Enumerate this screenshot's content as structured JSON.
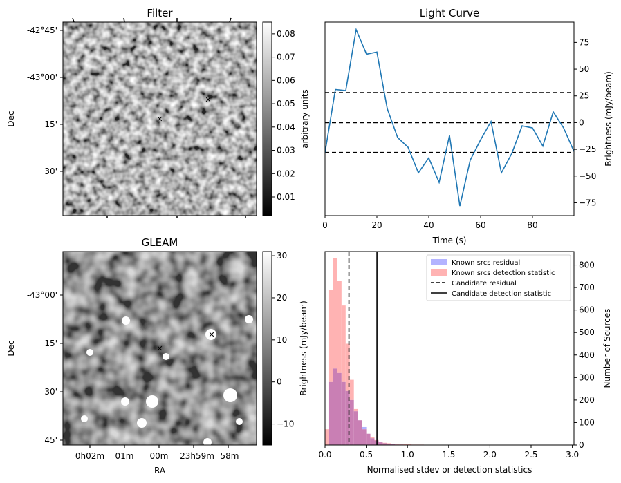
{
  "colors": {
    "line": "#1f77b4",
    "known_residual": "#b3b3ff",
    "known_detection": "#ffb3b3",
    "overlap": "#c97fb4",
    "marker_red": "#e41a1c",
    "marker_blue": "#1a1acc"
  },
  "chart_data": [
    {
      "type": "heatmap",
      "title": "Filter",
      "ylabel": "Dec",
      "y_ticks": [
        "-42°45'",
        "-43°00'",
        "15'",
        "30'"
      ],
      "colorbar": {
        "label": "arbitrary units",
        "range": [
          0.002,
          0.085
        ],
        "ticks": [
          "0.01",
          "0.02",
          "0.03",
          "0.04",
          "0.05",
          "0.06",
          "0.07",
          "0.08"
        ],
        "tick_values": [
          0.01,
          0.02,
          0.03,
          0.04,
          0.05,
          0.06,
          0.07,
          0.08
        ]
      },
      "markers": [
        {
          "symbol": "x",
          "color": "red"
        },
        {
          "symbol": "x",
          "color": "blue"
        }
      ]
    },
    {
      "type": "line",
      "title": "Light Curve",
      "xlabel": "Time (s)",
      "ylabel": "Brightness (mJy/beam)",
      "xlim": [
        0,
        96
      ],
      "ylim": [
        -87,
        94
      ],
      "x_ticks": [
        0,
        20,
        40,
        60,
        80
      ],
      "y_ticks": [
        -75,
        -50,
        -25,
        0,
        25,
        50,
        75
      ],
      "x": [
        0,
        4,
        8,
        12,
        16,
        20,
        24,
        28,
        32,
        36,
        40,
        44,
        48,
        52,
        56,
        60,
        64,
        68,
        72,
        76,
        80,
        84,
        88,
        92,
        96
      ],
      "y": [
        -28,
        31,
        30,
        87,
        64,
        66,
        13,
        -14,
        -23,
        -47,
        -33,
        -56,
        -12,
        -78,
        -35,
        -16,
        1,
        -47,
        -29,
        -3,
        -5,
        -22,
        10,
        -5,
        -27
      ],
      "hlines": [
        28,
        0,
        -28
      ]
    },
    {
      "type": "heatmap",
      "title": "GLEAM",
      "xlabel": "RA",
      "ylabel": "Dec",
      "x_ticks": [
        "0h02m",
        "01m",
        "00m",
        "23h59m",
        "58m"
      ],
      "y_ticks": [
        "-43°00'",
        "15'",
        "30'",
        "45'"
      ],
      "colorbar": {
        "range": [
          -15,
          31
        ],
        "ticks": [
          "−10",
          "0",
          "10",
          "20",
          "30"
        ],
        "tick_values": [
          -10,
          0,
          10,
          20,
          30
        ]
      },
      "markers": [
        {
          "symbol": "x",
          "color": "red"
        },
        {
          "symbol": "x",
          "color": "blue"
        }
      ]
    },
    {
      "type": "bar",
      "xlabel": "Normalised stdev or detection statistics",
      "ylabel": "Brightness (mJy/beam)",
      "ylabel_right": "Number of Sources",
      "xlim": [
        0,
        3.02
      ],
      "ylim": [
        0,
        860
      ],
      "x_ticks": [
        "0.0",
        "0.5",
        "1.0",
        "1.5",
        "2.0",
        "2.5",
        "3.0"
      ],
      "x_tick_values": [
        0,
        0.5,
        1.0,
        1.5,
        2.0,
        2.5,
        3.0
      ],
      "y_ticks": [
        "0",
        "100",
        "200",
        "300",
        "400",
        "500",
        "600",
        "700",
        "800"
      ],
      "y_tick_values": [
        0,
        100,
        200,
        300,
        400,
        500,
        600,
        700,
        800
      ],
      "bin_width": 0.05,
      "series": [
        {
          "name": "Known srcs residual",
          "values": [
            0,
            280,
            340,
            320,
            280,
            240,
            200,
            150,
            110,
            80,
            50,
            30,
            20,
            12,
            8,
            5,
            3,
            2,
            2,
            1,
            1,
            1,
            1,
            0,
            0,
            0,
            0,
            0,
            0,
            0,
            0,
            0,
            0,
            0,
            0,
            0,
            0,
            0,
            0,
            0,
            0,
            0,
            0,
            0,
            0,
            0,
            0,
            0,
            0,
            0,
            0,
            0,
            0,
            0,
            0,
            0,
            0,
            0,
            0,
            0
          ]
        },
        {
          "name": "Known srcs detection statistic",
          "values": [
            70,
            690,
            830,
            730,
            620,
            450,
            290,
            160,
            110,
            70,
            50,
            35,
            22,
            15,
            10,
            8,
            6,
            5,
            4,
            3,
            3,
            2,
            2,
            2,
            1,
            1,
            1,
            1,
            1,
            1,
            0,
            1,
            0,
            0,
            0,
            0,
            0,
            0,
            0,
            0,
            0,
            0,
            0,
            0,
            0,
            0,
            0,
            0,
            0,
            0,
            0,
            0,
            0,
            0,
            0,
            0,
            0,
            1,
            0,
            0
          ]
        }
      ],
      "vlines": [
        {
          "name": "Candidate residual",
          "x": 0.29,
          "style": "dashed"
        },
        {
          "name": "Candidate detection statistic",
          "x": 0.63,
          "style": "solid"
        }
      ],
      "legend": "top-right"
    }
  ]
}
